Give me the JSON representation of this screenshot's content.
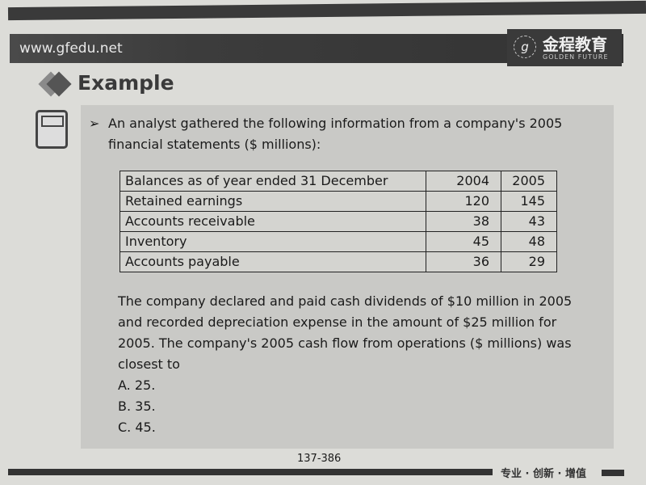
{
  "header": {
    "url": "www.gfedu.net",
    "logo_cn": "金程教育",
    "logo_en": "GOLDEN FUTURE",
    "logo_mark": "g"
  },
  "heading": "Example",
  "intro": {
    "bullet": "➢",
    "text": "An analyst gathered the following information from a company's 2005 financial statements ($ millions):"
  },
  "table": {
    "headers": [
      "Balances as of year ended 31 December",
      "2004",
      "2005"
    ],
    "rows": [
      [
        "Retained earnings",
        "120",
        "145"
      ],
      [
        "Accounts receivable",
        "38",
        "43"
      ],
      [
        "Inventory",
        "45",
        "48"
      ],
      [
        "Accounts payable",
        "36",
        "29"
      ]
    ]
  },
  "question": "The company declared and paid cash dividends of $10 million in 2005 and recorded depreciation expense in the amount of $25 million for 2005. The company's 2005 cash flow from operations ($ millions) was closest to",
  "options": [
    "A.  25.",
    "B.  35.",
    "C.  45."
  ],
  "footer": {
    "page": "137-386",
    "slogan": "专业 · 创新 · 增值"
  }
}
